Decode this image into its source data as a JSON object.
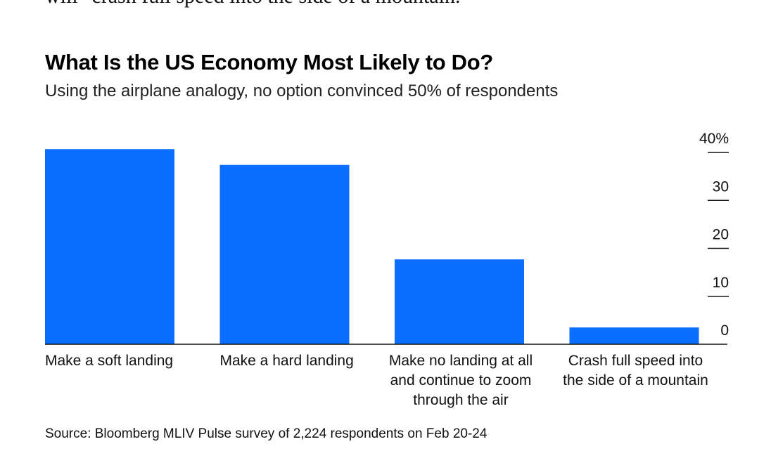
{
  "article": {
    "prior_text_fragment": "will \"crash full speed into the side of a mountain.\""
  },
  "chart_data": {
    "type": "bar",
    "title": "What Is the US Economy Most Likely to Do?",
    "subtitle": "Using the airplane analogy, no option convinced 50% of respondents",
    "categories": [
      [
        "Make a soft landing"
      ],
      [
        "Make a hard landing"
      ],
      [
        "Make no landing at all",
        "and continue to zoom",
        "through the air"
      ],
      [
        "Crash full speed into",
        "the side of a mountain"
      ]
    ],
    "values": [
      40.7,
      37.4,
      17.7,
      3.5
    ],
    "ylim": [
      0,
      40
    ],
    "y_ticks": [
      0,
      10,
      20,
      30,
      40
    ],
    "y_tick_labels": [
      "0",
      "10",
      "20",
      "30",
      "40%"
    ],
    "y_axis_side": "right",
    "grid": false,
    "bar_color": "#0a6eff",
    "source": "Source: Bloomberg MLIV Pulse survey of 2,224 respondents on Feb 20-24"
  }
}
